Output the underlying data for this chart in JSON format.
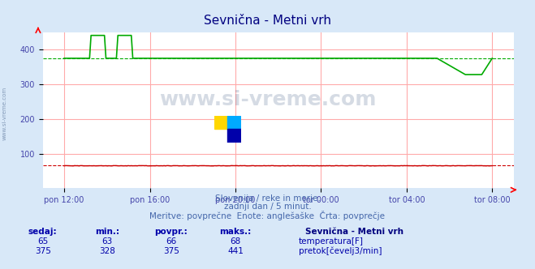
{
  "title": "Sevnična - Metni vrh",
  "title_color": "#000080",
  "bg_color": "#d8e8f8",
  "plot_bg_color": "#ffffff",
  "grid_color": "#ffaaaa",
  "xlabel_color": "#4444aa",
  "ylabel_color": "#4444aa",
  "yticks": [
    100,
    200,
    300,
    400
  ],
  "ylim": [
    0,
    450
  ],
  "xtick_labels": [
    "pon 12:00",
    "pon 16:00",
    "pon 20:00",
    "tor 00:00",
    "tor 04:00",
    "tor 08:00"
  ],
  "n_points": 288,
  "temp_color": "#cc0000",
  "flow_color": "#00aa00",
  "watermark_color": "#1a3a6a",
  "watermark_alpha": 0.18,
  "footer_line1": "Slovenija / reke in morje.",
  "footer_line2": "zadnji dan / 5 minut.",
  "footer_line3": "Meritve: povprečne  Enote: anglešaške  Črta: povprečje",
  "footer_color": "#4466aa",
  "legend_title": "Sevnična - Metni vrh",
  "legend_color": "#000080",
  "label_temp": "temperatura[F]",
  "label_flow": "pretok[čevelj3/min]",
  "stats_headers": [
    "sedaj:",
    "min.:",
    "povpr.:",
    "maks.:"
  ],
  "stats_temp": [
    65,
    63,
    66,
    68
  ],
  "stats_flow": [
    375,
    328,
    375,
    441
  ],
  "stats_color": "#0000aa",
  "avg_temp": 66,
  "avg_flow": 375
}
